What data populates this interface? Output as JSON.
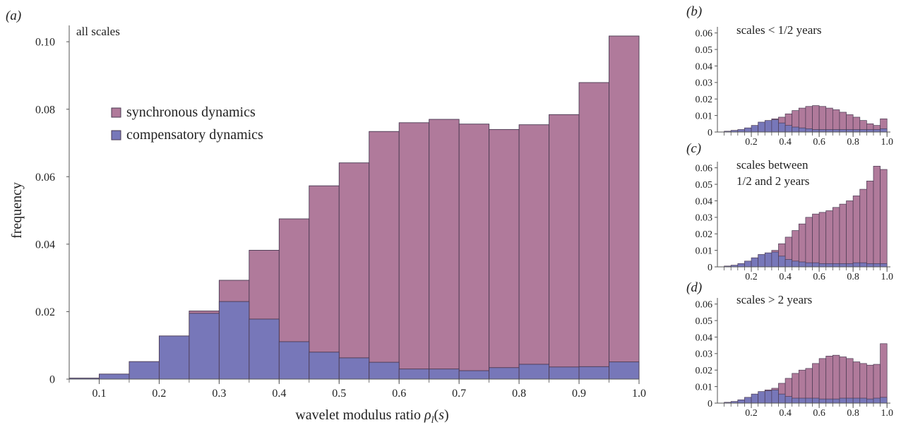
{
  "colors": {
    "synchronous": "#b07a9b",
    "compensatory": "#7777b9",
    "edge": "#4a3a52",
    "axis": "#555555"
  },
  "chart_data": [
    {
      "panel": "a",
      "panel_label": "(a)",
      "type": "bar",
      "stacked": "overlay",
      "title": "all scales",
      "xlabel": "wavelet modulus ratio ρl(s)",
      "ylabel": "frequency",
      "xlim": [
        0.05,
        1.0
      ],
      "ylim": [
        0,
        0.104
      ],
      "xticks": [
        0.1,
        0.2,
        0.3,
        0.4,
        0.5,
        0.6,
        0.7,
        0.8,
        0.9,
        1.0
      ],
      "xtick_labels": [
        "0.1",
        "0.2",
        "0.3",
        "0.4",
        "0.5",
        "0.6",
        "0.7",
        "0.8",
        "0.9",
        "1.0"
      ],
      "yticks": [
        0,
        0.02,
        0.04,
        0.06,
        0.08,
        0.1
      ],
      "ytick_labels": [
        "0",
        "0.02",
        "0.04",
        "0.06",
        "0.08",
        "0.10"
      ],
      "bin_width": 0.05,
      "x": [
        0.05,
        0.1,
        0.15,
        0.2,
        0.25,
        0.3,
        0.35,
        0.4,
        0.45,
        0.5,
        0.55,
        0.6,
        0.65,
        0.7,
        0.75,
        0.8,
        0.85,
        0.9,
        0.95
      ],
      "legend": [
        "synchronous dynamics",
        "compensatory dynamics"
      ],
      "legend_position": "upper-left",
      "series": [
        {
          "name": "synchronous dynamics",
          "key": "synchronous",
          "values": [
            0,
            0,
            0,
            0,
            0.0202,
            0.0293,
            0.0382,
            0.0475,
            0.0573,
            0.0641,
            0.0734,
            0.076,
            0.077,
            0.0756,
            0.074,
            0.0754,
            0.0784,
            0.0879,
            0.1017
          ]
        },
        {
          "name": "compensatory dynamics",
          "key": "compensatory",
          "values": [
            0.0003,
            0.0015,
            0.0052,
            0.0128,
            0.0195,
            0.023,
            0.0178,
            0.0111,
            0.008,
            0.0063,
            0.005,
            0.003,
            0.003,
            0.0025,
            0.0034,
            0.0044,
            0.0036,
            0.0037,
            0.0051
          ]
        }
      ]
    },
    {
      "panel": "b",
      "panel_label": "(b)",
      "type": "bar",
      "stacked": "overlay",
      "title": "scales < 1/2 years",
      "xlim": [
        0.0,
        1.02
      ],
      "ylim": [
        0,
        0.062
      ],
      "xticks": [
        0.2,
        0.4,
        0.6,
        0.8,
        1.0
      ],
      "xtick_labels": [
        "0.2",
        "0.4",
        "0.6",
        "0.8",
        "1.0"
      ],
      "yticks": [
        0,
        0.01,
        0.02,
        0.03,
        0.04,
        0.05,
        0.06
      ],
      "ytick_labels": [
        "0",
        "0.01",
        "0.02",
        "0.03",
        "0.04",
        "0.05",
        "0.06"
      ],
      "bin_width": 0.04,
      "x": [
        0.04,
        0.08,
        0.12,
        0.16,
        0.2,
        0.24,
        0.28,
        0.32,
        0.36,
        0.4,
        0.44,
        0.48,
        0.52,
        0.56,
        0.6,
        0.64,
        0.68,
        0.72,
        0.76,
        0.8,
        0.84,
        0.88,
        0.92,
        0.96
      ],
      "series": [
        {
          "name": "",
          "key": "synchronous",
          "values": [
            0,
            0,
            0,
            0,
            0,
            0,
            0,
            0.008,
            0.009,
            0.011,
            0.013,
            0.0145,
            0.0155,
            0.016,
            0.0155,
            0.0145,
            0.0135,
            0.012,
            0.0105,
            0.009,
            0.007,
            0.005,
            0.004,
            0.008
          ]
        },
        {
          "name": "",
          "key": "compensatory",
          "values": [
            0.0005,
            0.001,
            0.0015,
            0.0025,
            0.004,
            0.006,
            0.007,
            0.0075,
            0.0055,
            0.004,
            0.003,
            0.0025,
            0.002,
            0.0015,
            0.0015,
            0.0015,
            0.0015,
            0.0015,
            0.0015,
            0.0015,
            0.0015,
            0.0015,
            0.0015,
            0.002
          ]
        }
      ]
    },
    {
      "panel": "c",
      "panel_label": "(c)",
      "type": "bar",
      "stacked": "overlay",
      "title": "scales between 1/2 and 2 years",
      "title_lines": [
        "scales between",
        "1/2 and 2 years"
      ],
      "xlim": [
        0.0,
        1.02
      ],
      "ylim": [
        0,
        0.062
      ],
      "xticks": [
        0.2,
        0.4,
        0.6,
        0.8,
        1.0
      ],
      "xtick_labels": [
        "0.2",
        "0.4",
        "0.6",
        "0.8",
        "1.0"
      ],
      "yticks": [
        0,
        0.01,
        0.02,
        0.03,
        0.04,
        0.05,
        0.06
      ],
      "ytick_labels": [
        "0",
        "0.01",
        "0.02",
        "0.03",
        "0.04",
        "0.05",
        "0.06"
      ],
      "bin_width": 0.04,
      "x": [
        0.04,
        0.08,
        0.12,
        0.16,
        0.2,
        0.24,
        0.28,
        0.32,
        0.36,
        0.4,
        0.44,
        0.48,
        0.52,
        0.56,
        0.6,
        0.64,
        0.68,
        0.72,
        0.76,
        0.8,
        0.84,
        0.88,
        0.92,
        0.96
      ],
      "series": [
        {
          "name": "",
          "key": "synchronous",
          "values": [
            0,
            0,
            0,
            0,
            0,
            0,
            0,
            0.01,
            0.014,
            0.018,
            0.022,
            0.026,
            0.03,
            0.032,
            0.033,
            0.034,
            0.036,
            0.038,
            0.04,
            0.043,
            0.047,
            0.052,
            0.061,
            0.059
          ]
        },
        {
          "name": "",
          "key": "compensatory",
          "values": [
            0.0005,
            0.001,
            0.002,
            0.0035,
            0.0055,
            0.0075,
            0.0085,
            0.009,
            0.0065,
            0.0045,
            0.0035,
            0.003,
            0.0025,
            0.0025,
            0.002,
            0.002,
            0.002,
            0.002,
            0.002,
            0.0025,
            0.0025,
            0.002,
            0.002,
            0.002
          ]
        }
      ]
    },
    {
      "panel": "d",
      "panel_label": "(d)",
      "type": "bar",
      "stacked": "overlay",
      "title": "scales > 2 years",
      "xlim": [
        0.0,
        1.02
      ],
      "ylim": [
        0,
        0.062
      ],
      "xticks": [
        0.2,
        0.4,
        0.6,
        0.8,
        1.0
      ],
      "xtick_labels": [
        "0.2",
        "0.4",
        "0.6",
        "0.8",
        "1.0"
      ],
      "yticks": [
        0,
        0.01,
        0.02,
        0.03,
        0.04,
        0.05,
        0.06
      ],
      "ytick_labels": [
        "0",
        "0.01",
        "0.02",
        "0.03",
        "0.04",
        "0.05",
        "0.06"
      ],
      "bin_width": 0.04,
      "x": [
        0.04,
        0.08,
        0.12,
        0.16,
        0.2,
        0.24,
        0.28,
        0.32,
        0.36,
        0.4,
        0.44,
        0.48,
        0.52,
        0.56,
        0.6,
        0.64,
        0.68,
        0.72,
        0.76,
        0.8,
        0.84,
        0.88,
        0.92,
        0.96
      ],
      "series": [
        {
          "name": "",
          "key": "synchronous",
          "values": [
            0,
            0,
            0,
            0,
            0,
            0,
            0.008,
            0.009,
            0.012,
            0.015,
            0.018,
            0.02,
            0.021,
            0.024,
            0.027,
            0.0285,
            0.029,
            0.028,
            0.027,
            0.025,
            0.024,
            0.023,
            0.0235,
            0.036
          ]
        },
        {
          "name": "",
          "key": "compensatory",
          "values": [
            0.0005,
            0.001,
            0.002,
            0.0035,
            0.0055,
            0.007,
            0.0075,
            0.008,
            0.0055,
            0.004,
            0.003,
            0.003,
            0.003,
            0.003,
            0.0025,
            0.0025,
            0.0025,
            0.003,
            0.003,
            0.003,
            0.003,
            0.0025,
            0.003,
            0.0035
          ]
        }
      ]
    }
  ]
}
